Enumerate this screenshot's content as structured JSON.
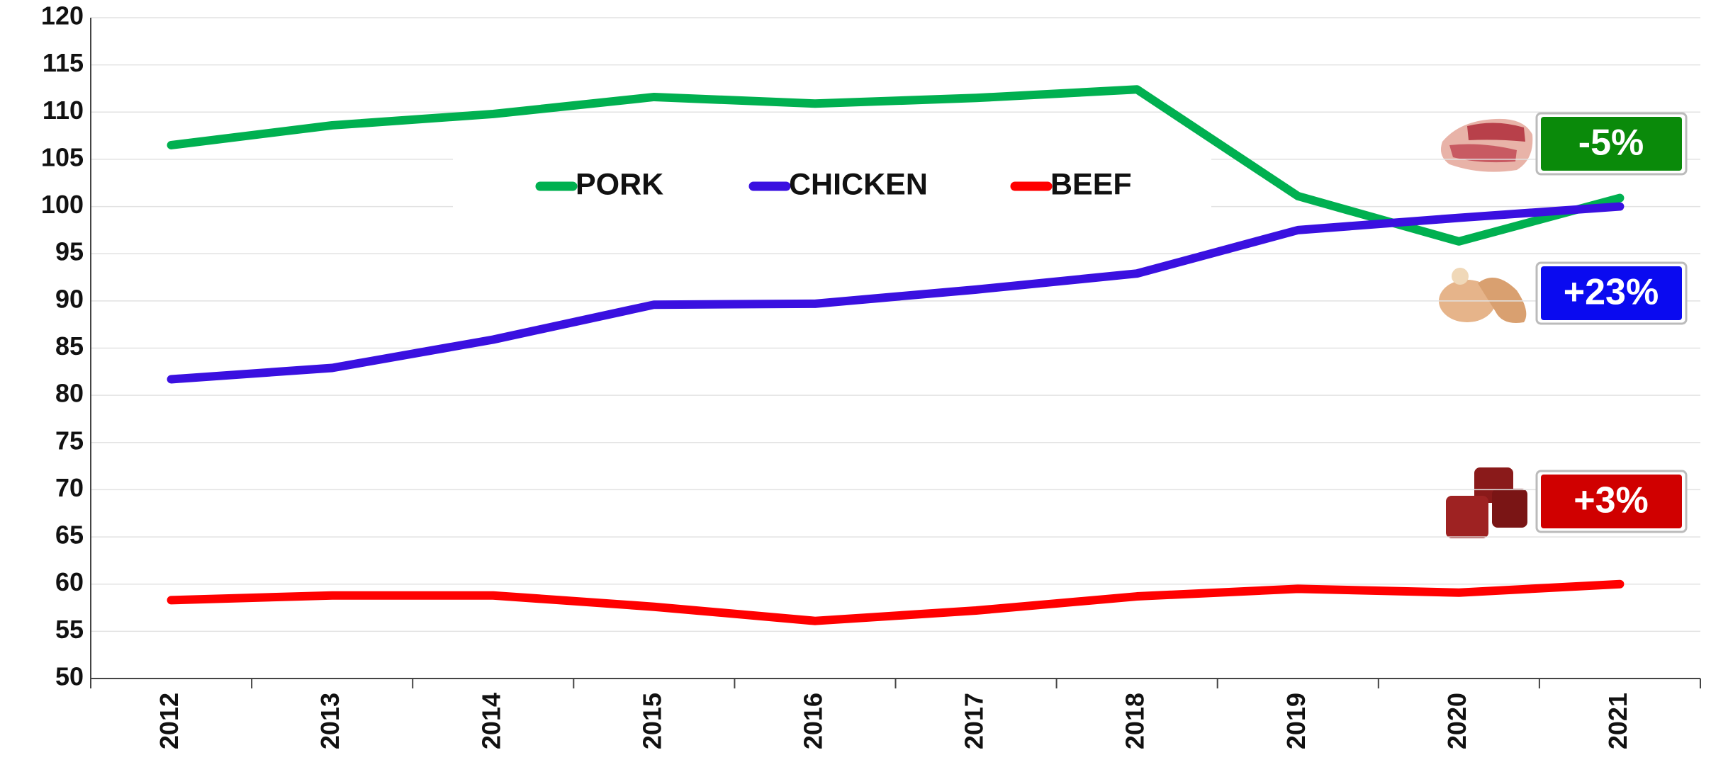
{
  "chart_data": {
    "type": "line",
    "categories": [
      "2012",
      "2013",
      "2014",
      "2015",
      "2016",
      "2017",
      "2018",
      "2019",
      "2020",
      "2021"
    ],
    "series": [
      {
        "name": "PORK",
        "color": "#00b050",
        "values": [
          106.5,
          108.6,
          109.8,
          111.6,
          110.9,
          111.5,
          112.4,
          101.1,
          96.3,
          100.9
        ]
      },
      {
        "name": "CHICKEN",
        "color": "#3a10e0",
        "values": [
          81.7,
          82.9,
          85.9,
          89.6,
          89.7,
          91.2,
          92.9,
          97.5,
          98.8,
          100
        ]
      },
      {
        "name": "BEEF",
        "color": "#ff0000",
        "values": [
          58.3,
          58.8,
          58.8,
          57.6,
          56.1,
          57.2,
          58.7,
          59.5,
          59.1,
          60
        ]
      }
    ],
    "ylim": [
      50,
      120
    ],
    "yticks": [
      50,
      55,
      60,
      65,
      70,
      75,
      80,
      85,
      90,
      95,
      100,
      105,
      110,
      115,
      120
    ],
    "grid": true,
    "legend": "top",
    "annotations": [
      {
        "text": "-5%",
        "color": "#0a8a0a"
      },
      {
        "text": "+23%",
        "color": "#0a0af0"
      },
      {
        "text": "+3%",
        "color": "#d00000"
      }
    ]
  }
}
